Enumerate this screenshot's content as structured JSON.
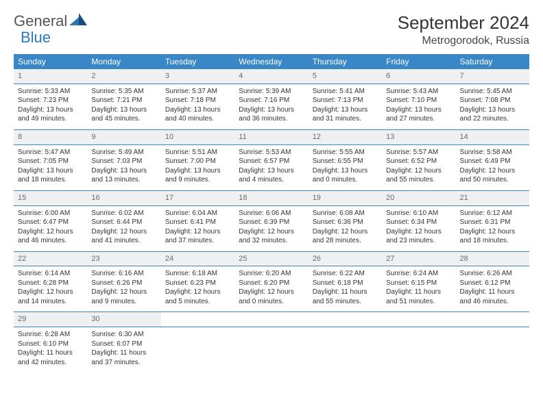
{
  "brand": {
    "part1": "General",
    "part2": "Blue"
  },
  "title": "September 2024",
  "location": "Metrogorodok, Russia",
  "colors": {
    "header_bg": "#3a87c7",
    "header_text": "#ffffff",
    "daynum_bg": "#eef0f1",
    "daynum_text": "#6a6a6a",
    "border": "#3a87c7",
    "logo_gray": "#555555",
    "logo_blue": "#2a7ab9"
  },
  "day_headers": [
    "Sunday",
    "Monday",
    "Tuesday",
    "Wednesday",
    "Thursday",
    "Friday",
    "Saturday"
  ],
  "weeks": [
    [
      {
        "n": "1",
        "sunrise": "5:33 AM",
        "sunset": "7:23 PM",
        "daylight": "13 hours and 49 minutes."
      },
      {
        "n": "2",
        "sunrise": "5:35 AM",
        "sunset": "7:21 PM",
        "daylight": "13 hours and 45 minutes."
      },
      {
        "n": "3",
        "sunrise": "5:37 AM",
        "sunset": "7:18 PM",
        "daylight": "13 hours and 40 minutes."
      },
      {
        "n": "4",
        "sunrise": "5:39 AM",
        "sunset": "7:16 PM",
        "daylight": "13 hours and 36 minutes."
      },
      {
        "n": "5",
        "sunrise": "5:41 AM",
        "sunset": "7:13 PM",
        "daylight": "13 hours and 31 minutes."
      },
      {
        "n": "6",
        "sunrise": "5:43 AM",
        "sunset": "7:10 PM",
        "daylight": "13 hours and 27 minutes."
      },
      {
        "n": "7",
        "sunrise": "5:45 AM",
        "sunset": "7:08 PM",
        "daylight": "13 hours and 22 minutes."
      }
    ],
    [
      {
        "n": "8",
        "sunrise": "5:47 AM",
        "sunset": "7:05 PM",
        "daylight": "13 hours and 18 minutes."
      },
      {
        "n": "9",
        "sunrise": "5:49 AM",
        "sunset": "7:03 PM",
        "daylight": "13 hours and 13 minutes."
      },
      {
        "n": "10",
        "sunrise": "5:51 AM",
        "sunset": "7:00 PM",
        "daylight": "13 hours and 9 minutes."
      },
      {
        "n": "11",
        "sunrise": "5:53 AM",
        "sunset": "6:57 PM",
        "daylight": "13 hours and 4 minutes."
      },
      {
        "n": "12",
        "sunrise": "5:55 AM",
        "sunset": "6:55 PM",
        "daylight": "13 hours and 0 minutes."
      },
      {
        "n": "13",
        "sunrise": "5:57 AM",
        "sunset": "6:52 PM",
        "daylight": "12 hours and 55 minutes."
      },
      {
        "n": "14",
        "sunrise": "5:58 AM",
        "sunset": "6:49 PM",
        "daylight": "12 hours and 50 minutes."
      }
    ],
    [
      {
        "n": "15",
        "sunrise": "6:00 AM",
        "sunset": "6:47 PM",
        "daylight": "12 hours and 46 minutes."
      },
      {
        "n": "16",
        "sunrise": "6:02 AM",
        "sunset": "6:44 PM",
        "daylight": "12 hours and 41 minutes."
      },
      {
        "n": "17",
        "sunrise": "6:04 AM",
        "sunset": "6:41 PM",
        "daylight": "12 hours and 37 minutes."
      },
      {
        "n": "18",
        "sunrise": "6:06 AM",
        "sunset": "6:39 PM",
        "daylight": "12 hours and 32 minutes."
      },
      {
        "n": "19",
        "sunrise": "6:08 AM",
        "sunset": "6:36 PM",
        "daylight": "12 hours and 28 minutes."
      },
      {
        "n": "20",
        "sunrise": "6:10 AM",
        "sunset": "6:34 PM",
        "daylight": "12 hours and 23 minutes."
      },
      {
        "n": "21",
        "sunrise": "6:12 AM",
        "sunset": "6:31 PM",
        "daylight": "12 hours and 18 minutes."
      }
    ],
    [
      {
        "n": "22",
        "sunrise": "6:14 AM",
        "sunset": "6:28 PM",
        "daylight": "12 hours and 14 minutes."
      },
      {
        "n": "23",
        "sunrise": "6:16 AM",
        "sunset": "6:26 PM",
        "daylight": "12 hours and 9 minutes."
      },
      {
        "n": "24",
        "sunrise": "6:18 AM",
        "sunset": "6:23 PM",
        "daylight": "12 hours and 5 minutes."
      },
      {
        "n": "25",
        "sunrise": "6:20 AM",
        "sunset": "6:20 PM",
        "daylight": "12 hours and 0 minutes."
      },
      {
        "n": "26",
        "sunrise": "6:22 AM",
        "sunset": "6:18 PM",
        "daylight": "11 hours and 55 minutes."
      },
      {
        "n": "27",
        "sunrise": "6:24 AM",
        "sunset": "6:15 PM",
        "daylight": "11 hours and 51 minutes."
      },
      {
        "n": "28",
        "sunrise": "6:26 AM",
        "sunset": "6:12 PM",
        "daylight": "11 hours and 46 minutes."
      }
    ],
    [
      {
        "n": "29",
        "sunrise": "6:28 AM",
        "sunset": "6:10 PM",
        "daylight": "11 hours and 42 minutes."
      },
      {
        "n": "30",
        "sunrise": "6:30 AM",
        "sunset": "6:07 PM",
        "daylight": "11 hours and 37 minutes."
      },
      null,
      null,
      null,
      null,
      null
    ]
  ],
  "labels": {
    "sunrise": "Sunrise:",
    "sunset": "Sunset:",
    "daylight": "Daylight:"
  }
}
